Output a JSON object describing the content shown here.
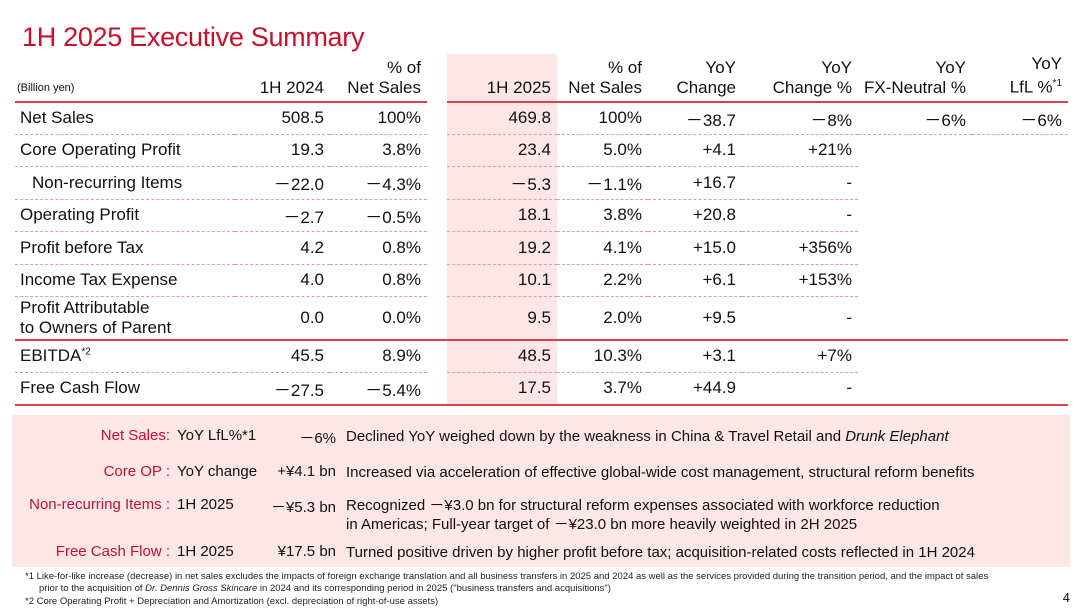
{
  "title": "1H 2025 Executive Summary",
  "table": {
    "unit": "(Billion yen)",
    "headers": [
      "1H 2024",
      "% of\nNet Sales",
      "1H 2025",
      "% of\nNet Sales",
      "YoY\nChange",
      "YoY\nChange %",
      "YoY\nFX-Neutral %",
      "YoY\nLfL %"
    ],
    "lfl_note": "*1",
    "rows": [
      {
        "label": "Net Sales",
        "v": [
          "508.5",
          "100%",
          "469.8",
          "100%",
          "－38.7",
          "－8%",
          "－6%",
          "－6%"
        ]
      },
      {
        "label": "Core Operating Profit",
        "v": [
          "19.3",
          "3.8%",
          "23.4",
          "5.0%",
          "+4.1",
          "+21%",
          "",
          ""
        ]
      },
      {
        "label": "Non-recurring Items",
        "v": [
          "－22.0",
          "－4.3%",
          "－5.3",
          "－1.1%",
          "+16.7",
          "-",
          "",
          ""
        ]
      },
      {
        "label": "Operating Profit",
        "v": [
          "－2.7",
          "－0.5%",
          "18.1",
          "3.8%",
          "+20.8",
          "-",
          "",
          ""
        ]
      },
      {
        "label": "Profit before Tax",
        "v": [
          "4.2",
          "0.8%",
          "19.2",
          "4.1%",
          "+15.0",
          "+356%",
          "",
          ""
        ]
      },
      {
        "label": "Income Tax Expense",
        "v": [
          "4.0",
          "0.8%",
          "10.1",
          "2.2%",
          "+6.1",
          "+153%",
          "",
          ""
        ]
      },
      {
        "label": "Profit Attributable\nto Owners of Parent",
        "v": [
          "0.0",
          "0.0%",
          "9.5",
          "2.0%",
          "+9.5",
          "-",
          "",
          ""
        ]
      },
      {
        "label": "EBITDA",
        "note": "*2",
        "v": [
          "45.5",
          "8.9%",
          "48.5",
          "10.3%",
          "+3.1",
          "+7%",
          "",
          ""
        ]
      },
      {
        "label": "Free Cash Flow",
        "v": [
          "－27.5",
          "－5.4%",
          "17.5",
          "3.7%",
          "+44.9",
          "-",
          "",
          ""
        ]
      }
    ]
  },
  "highlights": [
    {
      "label": "Net Sales:",
      "sub": "YoY LfL%*1",
      "value": "－6%",
      "desc": "Declined YoY weighed down by the weakness in China & Travel Retail and ",
      "desc_italic": "Drunk Elephant"
    },
    {
      "label": "Core OP :",
      "sub": "YoY change",
      "value": "+¥4.1 bn",
      "desc": "Increased via acceleration of effective global-wide cost management, structural reform benefits"
    },
    {
      "label": "Non-recurring Items :",
      "sub": "1H 2025",
      "value": "－¥5.3 bn",
      "desc": "Recognized －¥3.0 bn for structural reform expenses associated with workforce reduction",
      "desc2": "in Americas; Full-year target of －¥23.0 bn more heavily weighted in 2H 2025"
    },
    {
      "label": "Free Cash Flow :",
      "sub": "1H 2025",
      "value": "¥17.5 bn",
      "desc": "Turned positive driven by higher profit before tax; acquisition-related costs reflected in 1H 2024"
    }
  ],
  "footnotes": {
    "f1a": "*1 Like-for-like increase (decrease) in net sales excludes the impacts of foreign exchange translation and all business transfers in 2025 and 2024 as well as the services provided during the transition period, and the impact of sales",
    "f1b_pre": "prior to the acquisition of ",
    "f1b_italic": "Dr. Dennis Gross Skincare",
    "f1b_post": " in 2024 and its corresponding period in 2025 (\"business transfers and acquisitions\")",
    "f2": "*2 Core Operating Profit + Depreciation and Amortization (excl. depreciation of right-of-use assets)"
  },
  "page_number": "4",
  "colors": {
    "accent": "#c8102e",
    "highlight": "#fde6e6"
  }
}
